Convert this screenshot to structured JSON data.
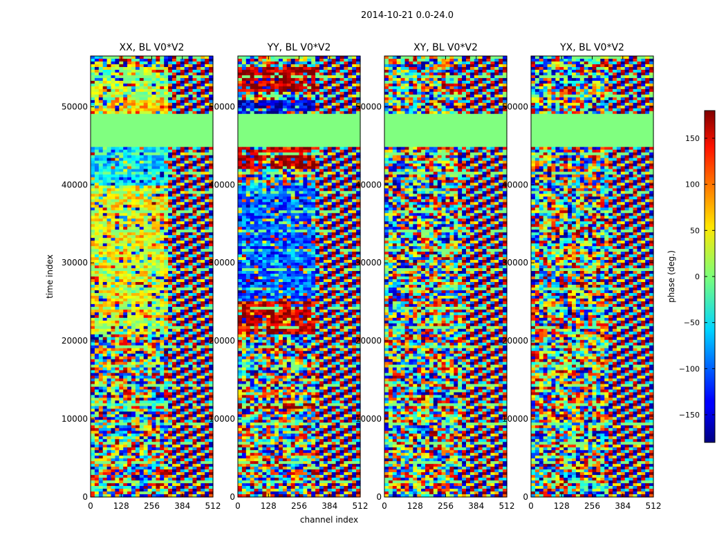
{
  "figure": {
    "suptitle": "2014-10-21 0.0-24.0"
  },
  "chart_data": {
    "type": "heatmap",
    "xlabel": "channel index",
    "ylabel": "time index",
    "xlim": [
      0,
      512
    ],
    "ylim": [
      0,
      56500
    ],
    "xticks": [
      0,
      128,
      256,
      384,
      512
    ],
    "yticks": [
      0,
      10000,
      20000,
      30000,
      40000,
      50000
    ],
    "panels": [
      {
        "title": "XX, BL V0*V2",
        "pol": "XX"
      },
      {
        "title": "YY, BL V0*V2",
        "pol": "YY"
      },
      {
        "title": "XY, BL V0*V2",
        "pol": "XY"
      },
      {
        "title": "YX, BL V0*V2",
        "pol": "YX"
      }
    ],
    "flagged_time_range": [
      45000,
      49000
    ],
    "colorbar": {
      "label": "phase (deg.)",
      "range": [
        -180,
        180
      ],
      "ticks": [
        -150,
        -100,
        -50,
        0,
        50,
        100,
        150
      ],
      "colormap": "jet"
    },
    "legend": "none",
    "grid": false
  }
}
